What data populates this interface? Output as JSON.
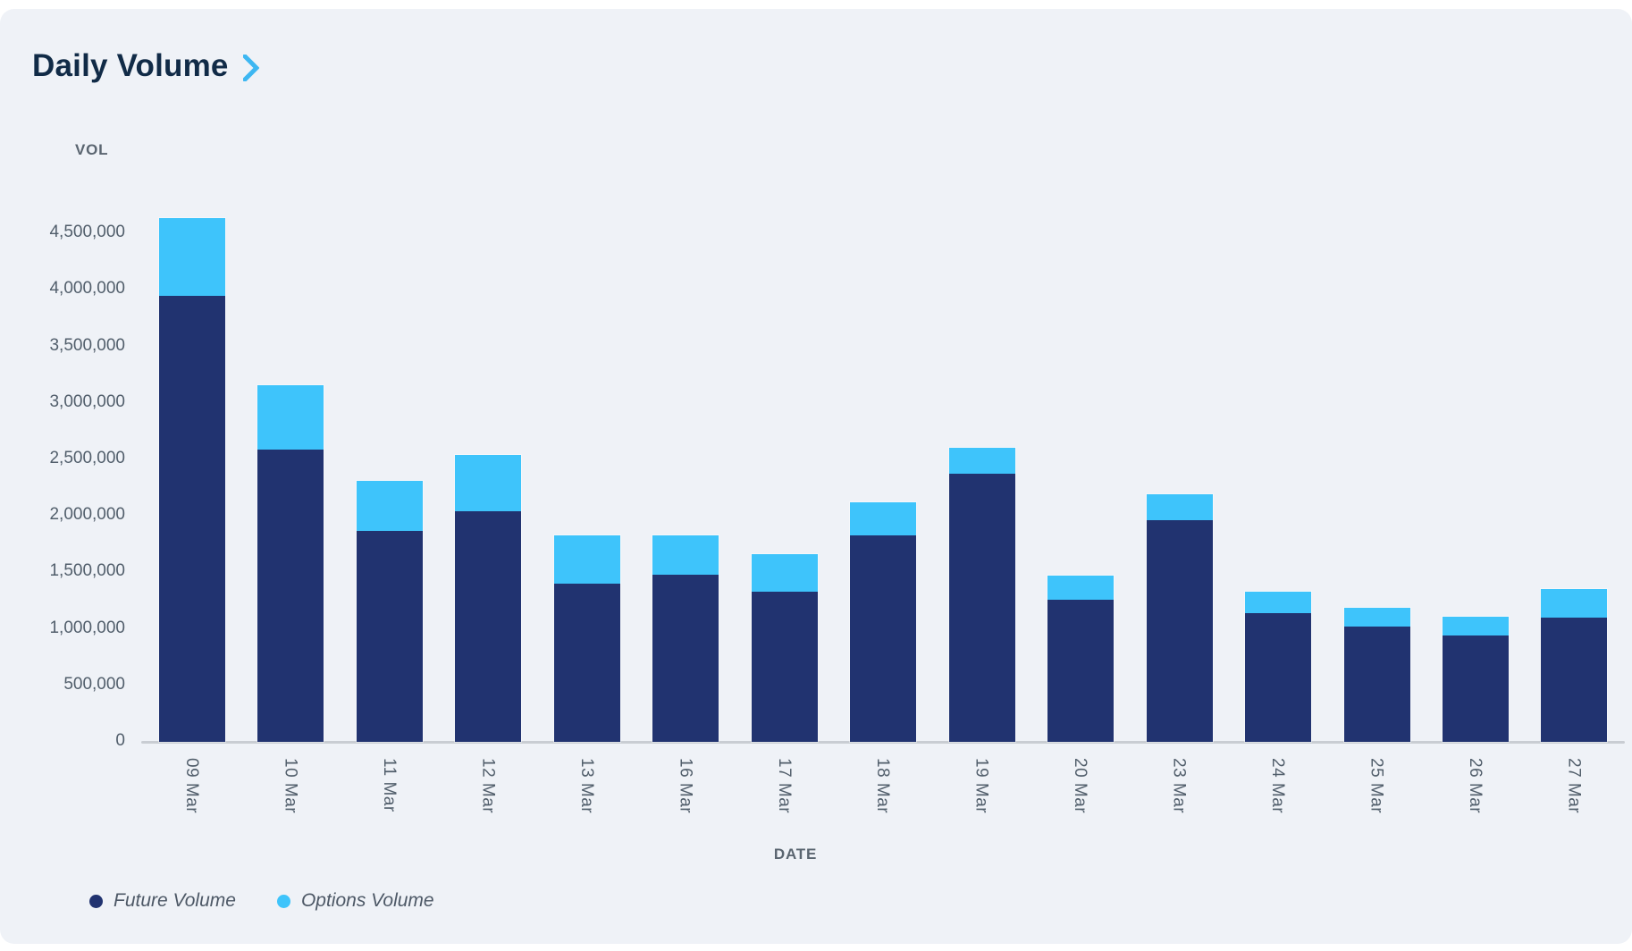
{
  "header": {
    "title": "Daily Volume",
    "chevron_icon": "chevron-right",
    "chevron_color": "#3DB7F2"
  },
  "colors": {
    "card_background": "#EFF2F7",
    "future_volume": "#213370",
    "options_volume": "#3EC4FB",
    "axis_line": "#C9CDD3",
    "tick_text": "#515E6B",
    "title_text": "#112B47"
  },
  "chart_data": {
    "type": "bar",
    "stacked": true,
    "title": "Daily Volume",
    "xlabel": "DATE",
    "ylabel": "VOL",
    "grid": false,
    "legend_position": "bottom-left",
    "ylim": [
      0,
      4500000
    ],
    "ytick_step": 500000,
    "ytick_labels": [
      "0",
      "500,000",
      "1,000,000",
      "1,500,000",
      "2,000,000",
      "2,500,000",
      "3,000,000",
      "3,500,000",
      "4,000,000",
      "4,500,000"
    ],
    "categories": [
      "09 Mar",
      "10 Mar",
      "11 Mar",
      "12 Mar",
      "13 Mar",
      "16 Mar",
      "17 Mar",
      "18 Mar",
      "19 Mar",
      "20 Mar",
      "23 Mar",
      "24 Mar",
      "25 Mar",
      "26 Mar",
      "27 Mar"
    ],
    "series": [
      {
        "name": "Future Volume",
        "color": "#213370",
        "values": [
          3950000,
          2590000,
          1870000,
          2040000,
          1400000,
          1480000,
          1330000,
          1830000,
          2370000,
          1260000,
          1960000,
          1140000,
          1020000,
          940000,
          1100000
        ]
      },
      {
        "name": "Options Volume",
        "color": "#3EC4FB",
        "values": [
          690000,
          570000,
          440000,
          500000,
          430000,
          350000,
          330000,
          290000,
          230000,
          210000,
          230000,
          190000,
          170000,
          170000,
          250000
        ]
      }
    ],
    "totals": [
      4640000,
      3160000,
      2310000,
      2540000,
      1830000,
      1830000,
      1660000,
      2120000,
      2600000,
      1470000,
      2190000,
      1330000,
      1190000,
      1110000,
      1350000
    ]
  }
}
